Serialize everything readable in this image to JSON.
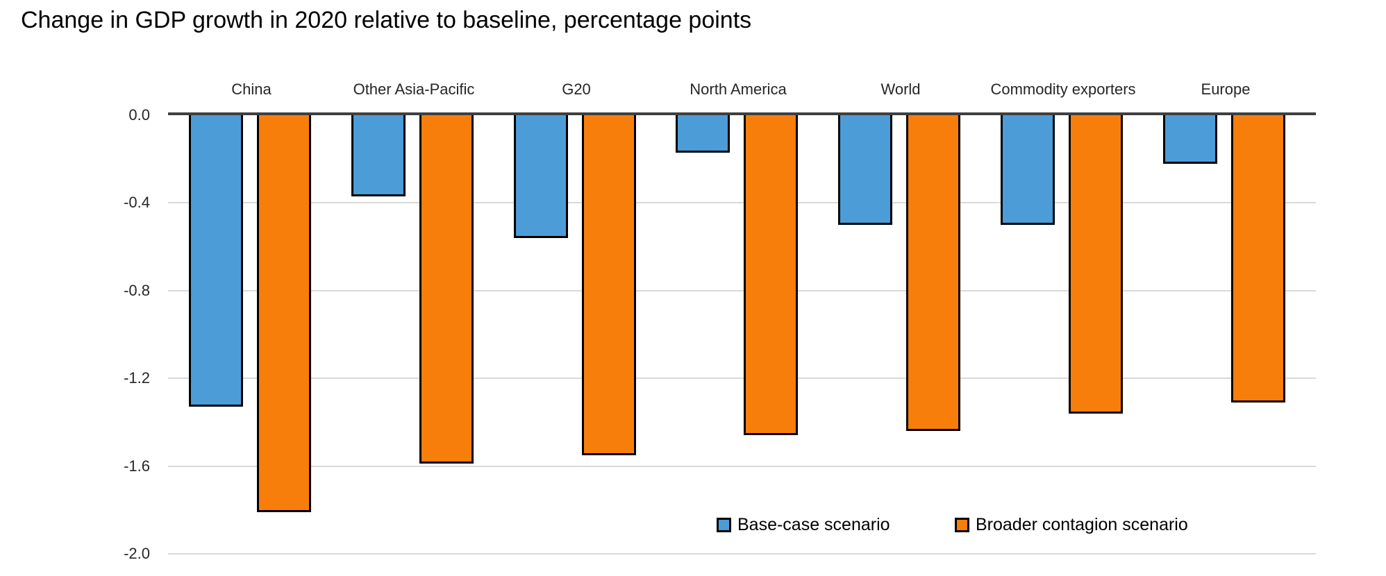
{
  "title": "Change in GDP growth in 2020 relative to baseline, percentage points",
  "chart_data": {
    "type": "bar",
    "title": "Change in GDP growth in 2020 relative to baseline, percentage points",
    "categories": [
      "China",
      "Other Asia-Pacific",
      "G20",
      "North America",
      "World",
      "Commodity exporters",
      "Europe"
    ],
    "series": [
      {
        "name": "Base-case scenario",
        "color": "#4c9cd7",
        "values": [
          -1.33,
          -0.37,
          -0.56,
          -0.17,
          -0.5,
          -0.5,
          -0.22
        ]
      },
      {
        "name": "Broader contagion scenario",
        "color": "#f87e0b",
        "values": [
          -1.81,
          -1.59,
          -1.55,
          -1.46,
          -1.44,
          -1.36,
          -1.31
        ]
      }
    ],
    "xlabel": "",
    "ylabel": "",
    "ylim": [
      -2.0,
      0.0
    ],
    "yticks": [
      "0.0",
      "-0.4",
      "-0.8",
      "-1.2",
      "-1.6",
      "-2.0"
    ],
    "grid": true,
    "gridline_color": "#d9d9d9",
    "zero_axis_color": "#3f3f3f",
    "bar_border_color": "#000000",
    "legend_position": "inside-bottom-right"
  }
}
